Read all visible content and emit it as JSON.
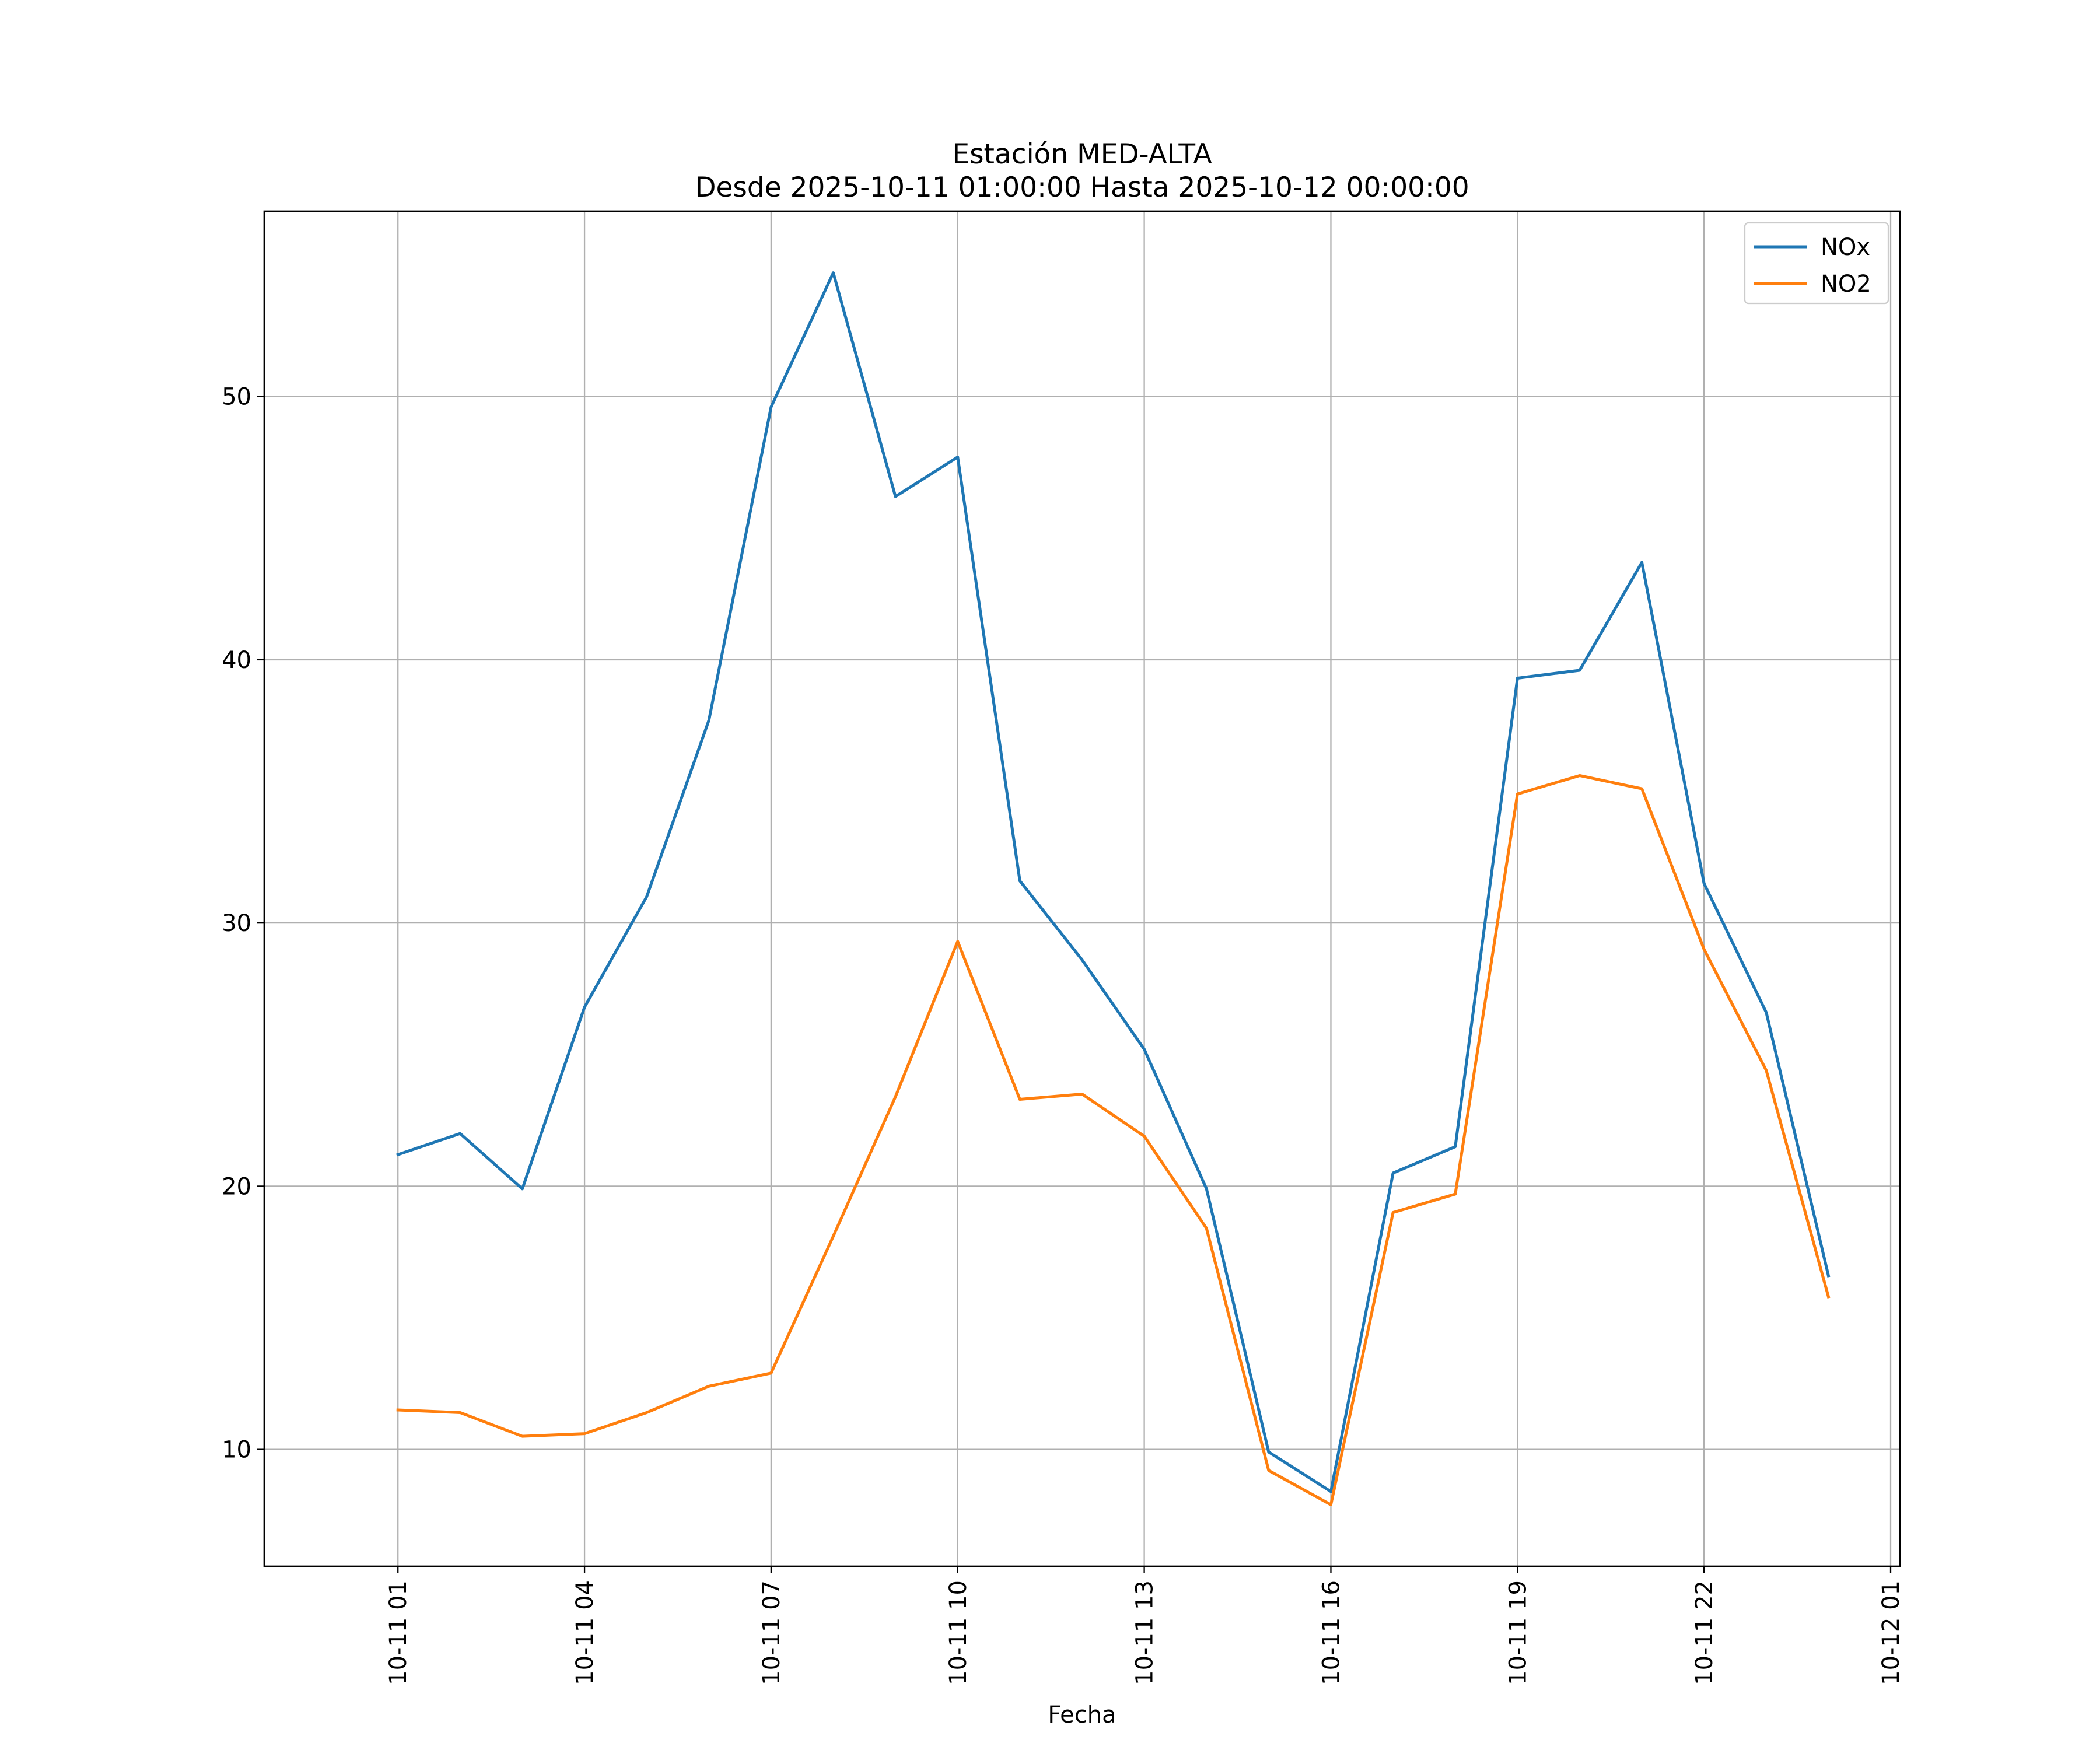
{
  "chart_data": {
    "type": "line",
    "title": "Estación MED-ALTA",
    "subtitle": "Desde 2025-10-11 01:00:00 Hasta 2025-10-12 00:00:00",
    "xlabel": "Fecha",
    "ylabel": "",
    "x": [
      "2025-10-11 01:00",
      "2025-10-11 02:00",
      "2025-10-11 03:00",
      "2025-10-11 04:00",
      "2025-10-11 05:00",
      "2025-10-11 06:00",
      "2025-10-11 07:00",
      "2025-10-11 08:00",
      "2025-10-11 09:00",
      "2025-10-11 10:00",
      "2025-10-11 11:00",
      "2025-10-11 12:00",
      "2025-10-11 13:00",
      "2025-10-11 14:00",
      "2025-10-11 15:00",
      "2025-10-11 16:00",
      "2025-10-11 17:00",
      "2025-10-11 18:00",
      "2025-10-11 19:00",
      "2025-10-11 20:00",
      "2025-10-11 21:00",
      "2025-10-11 22:00",
      "2025-10-11 23:00",
      "2025-10-12 00:00"
    ],
    "series": [
      {
        "name": "NOx",
        "color": "#1f77b4",
        "values": [
          21.2,
          22.0,
          19.9,
          26.8,
          31.0,
          37.7,
          49.6,
          54.7,
          46.2,
          47.7,
          31.6,
          28.6,
          25.2,
          19.9,
          9.9,
          8.4,
          20.5,
          21.5,
          39.3,
          39.6,
          43.7,
          31.5,
          26.6,
          16.6
        ]
      },
      {
        "name": "NO2",
        "color": "#ff7f0e",
        "values": [
          11.5,
          11.4,
          10.5,
          10.6,
          11.4,
          12.4,
          12.9,
          18.1,
          23.4,
          29.3,
          23.3,
          23.5,
          21.9,
          18.4,
          9.2,
          7.9,
          19.0,
          19.7,
          34.9,
          35.6,
          35.1,
          29.0,
          24.4,
          15.8
        ]
      }
    ],
    "x_ticks": [
      "2025-10-11 01:00",
      "2025-10-11 04:00",
      "2025-10-11 07:00",
      "2025-10-11 10:00",
      "2025-10-11 13:00",
      "2025-10-11 16:00",
      "2025-10-11 19:00",
      "2025-10-11 22:00",
      "2025-10-12 01:00"
    ],
    "x_tick_labels": [
      "10-11 01",
      "10-11 04",
      "10-11 07",
      "10-11 10",
      "10-11 13",
      "10-11 16",
      "10-11 19",
      "10-11 22",
      "10-12 01"
    ],
    "xlim": [
      "2025-10-10 22:51",
      "2025-10-12 01:09"
    ],
    "y_ticks": [
      10,
      20,
      30,
      40,
      50
    ],
    "y_tick_labels": [
      "10",
      "20",
      "30",
      "40",
      "50"
    ],
    "ylim": [
      5.56,
      57.04
    ],
    "grid": true,
    "legend": {
      "placement": "top-right",
      "entries": [
        "NOx",
        "NO2"
      ]
    },
    "colors": {
      "grid": "#b0b0b0",
      "axes": "#000000"
    }
  }
}
